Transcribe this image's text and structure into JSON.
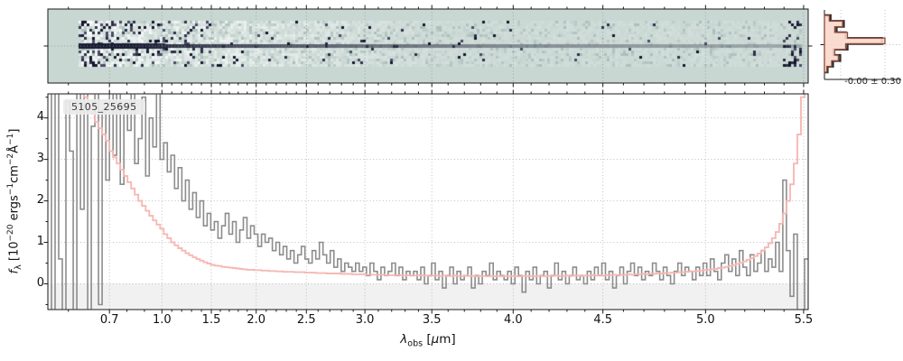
{
  "panel2d": {
    "bg_color": "#c9d7d3",
    "speckle_colors": [
      "#14152b",
      "#2c2f4a",
      "#474b66"
    ],
    "trace_color": "#1a1d33",
    "light_color": "#ffffff",
    "shadow_color": "#9cb3af"
  },
  "hist": {
    "annotation": "-0.00 ± 0.30",
    "outline_color": "#2e2e2e",
    "fill_color": "#f9d7cb",
    "edge_color": "#8c4a38"
  },
  "main": {
    "label": "5105_25695",
    "xlabel_parts": [
      "λ",
      "obs",
      " [",
      "μ",
      "m",
      "]"
    ],
    "ylabel_parts": [
      "f",
      "λ",
      " [10",
      "−20",
      " ergs",
      "−1",
      "cm",
      "−2",
      "Å",
      "−1",
      "]"
    ],
    "flux_color": "#8c8c8c",
    "err_color": "#f5b5b1",
    "grid_color": "#b8b8b8",
    "zero_shade_color": "#f1f1f1"
  },
  "chart_data": [
    {
      "type": "line",
      "title": "5105_25695",
      "xlabel": "lambda_obs [um]",
      "ylabel": "f_lambda [1e-20 ergs-1 cm-2 A-1]",
      "xlim": [
        0.55,
        5.52
      ],
      "ylim": [
        -0.62,
        4.58
      ],
      "x_ticks": [
        0.7,
        1.0,
        1.5,
        2.0,
        2.5,
        3.0,
        3.5,
        4.0,
        4.5,
        5.0,
        5.5
      ],
      "x_minor_step": 0.1,
      "y_ticks": [
        0,
        1,
        2,
        3,
        4
      ],
      "y_minor_step": 0.5,
      "grid": "dotted",
      "legend_position": "upper left",
      "wavelength_anchors": [
        [
          0.55,
          0.0
        ],
        [
          0.7,
          0.081
        ],
        [
          1.0,
          0.15
        ],
        [
          1.5,
          0.215
        ],
        [
          2.0,
          0.274
        ],
        [
          2.5,
          0.34
        ],
        [
          3.0,
          0.417
        ],
        [
          3.5,
          0.505
        ],
        [
          4.0,
          0.612
        ],
        [
          4.5,
          0.73
        ],
        [
          5.0,
          0.865
        ],
        [
          5.5,
          0.994
        ]
      ],
      "sampling": "210 steps uniform in detector-pixel fraction 0..1 spanning xlim",
      "series": [
        {
          "name": "flux",
          "color": "#8c8c8c",
          "line": "steps",
          "values": [
            4.8,
            -0.9,
            5.2,
            0.6,
            -1.1,
            4.4,
            3.2,
            -0.7,
            5.0,
            1.8,
            4.6,
            -1.0,
            3.8,
            5.1,
            -0.5,
            4.2,
            2.5,
            4.7,
            3.1,
            4.9,
            2.4,
            4.3,
            3.7,
            4.8,
            2.9,
            3.5,
            4.5,
            2.6,
            4.0,
            3.3,
            4.6,
            3.0,
            3.4,
            2.7,
            3.1,
            2.3,
            2.8,
            2.0,
            2.5,
            1.8,
            2.2,
            1.6,
            2.0,
            1.4,
            1.7,
            1.3,
            1.5,
            1.1,
            1.4,
            1.7,
            1.2,
            1.5,
            1.0,
            1.3,
            1.6,
            1.1,
            1.4,
            1.2,
            0.9,
            1.2,
            1.0,
            1.1,
            0.8,
            1.0,
            0.7,
            0.9,
            0.6,
            0.8,
            0.5,
            0.7,
            0.9,
            0.6,
            0.5,
            0.8,
            0.6,
            1.0,
            0.7,
            0.5,
            0.8,
            0.4,
            0.6,
            0.3,
            0.5,
            0.4,
            0.3,
            0.5,
            0.3,
            0.4,
            0.2,
            0.5,
            0.3,
            0.1,
            0.4,
            0.2,
            0.3,
            0.5,
            0.2,
            0.4,
            0.1,
            0.3,
            0.2,
            0.3,
            0.1,
            0.4,
            0.0,
            0.2,
            0.5,
            0.1,
            0.3,
            -0.1,
            0.2,
            0.4,
            0.0,
            0.3,
            0.1,
            0.2,
            0.4,
            -0.1,
            0.2,
            0.0,
            0.3,
            0.2,
            0.5,
            0.1,
            0.3,
            0.2,
            0.1,
            0.3,
            0.0,
            0.4,
            0.2,
            -0.2,
            0.3,
            0.1,
            0.4,
            0.0,
            0.2,
            0.3,
            -0.1,
            0.2,
            0.5,
            0.1,
            0.3,
            0.0,
            0.2,
            0.4,
            0.1,
            0.2,
            0.0,
            0.3,
            0.1,
            0.4,
            0.2,
            0.5,
            0.1,
            0.3,
            -0.1,
            0.2,
            0.4,
            0.0,
            0.3,
            0.5,
            0.2,
            0.4,
            0.1,
            0.3,
            0.2,
            0.5,
            0.3,
            0.1,
            0.4,
            0.2,
            0.0,
            0.3,
            0.5,
            0.2,
            0.4,
            0.3,
            0.1,
            0.4,
            0.2,
            0.5,
            0.2,
            0.6,
            0.3,
            0.1,
            0.5,
            0.7,
            0.3,
            0.6,
            0.2,
            0.8,
            0.4,
            0.2,
            0.7,
            0.3,
            0.5,
            0.8,
            0.3,
            0.6,
            0.4,
            1.0,
            0.3,
            2.5,
            0.8,
            -0.3,
            1.2,
            -0.9,
            -1.3,
            0.6
          ]
        },
        {
          "name": "uncertainty",
          "color": "#f5b5b1",
          "line": "steps",
          "values": [
            6.0,
            6.0,
            6.0,
            6.0,
            6.0,
            5.8,
            5.5,
            5.2,
            4.9,
            4.7,
            4.5,
            4.3,
            4.1,
            3.9,
            3.75,
            3.6,
            3.45,
            3.2,
            3.05,
            2.9,
            2.75,
            2.6,
            2.45,
            2.3,
            2.15,
            2.0,
            1.88,
            1.76,
            1.64,
            1.53,
            1.43,
            1.33,
            1.2,
            1.1,
            1.0,
            0.93,
            0.86,
            0.8,
            0.74,
            0.69,
            0.64,
            0.6,
            0.56,
            0.52,
            0.49,
            0.46,
            0.44,
            0.43,
            0.41,
            0.4,
            0.39,
            0.38,
            0.37,
            0.36,
            0.35,
            0.34,
            0.34,
            0.33,
            0.33,
            0.32,
            0.32,
            0.31,
            0.31,
            0.3,
            0.3,
            0.29,
            0.29,
            0.29,
            0.28,
            0.28,
            0.28,
            0.27,
            0.27,
            0.27,
            0.26,
            0.26,
            0.26,
            0.25,
            0.25,
            0.25,
            0.25,
            0.24,
            0.24,
            0.24,
            0.23,
            0.23,
            0.23,
            0.23,
            0.22,
            0.22,
            0.22,
            0.22,
            0.22,
            0.21,
            0.21,
            0.21,
            0.21,
            0.21,
            0.2,
            0.21,
            0.2,
            0.2,
            0.21,
            0.2,
            0.2,
            0.19,
            0.2,
            0.2,
            0.19,
            0.2,
            0.19,
            0.19,
            0.2,
            0.19,
            0.19,
            0.2,
            0.19,
            0.19,
            0.18,
            0.19,
            0.19,
            0.18,
            0.19,
            0.18,
            0.19,
            0.18,
            0.19,
            0.18,
            0.19,
            0.18,
            0.18,
            0.19,
            0.18,
            0.19,
            0.18,
            0.19,
            0.19,
            0.18,
            0.19,
            0.19,
            0.2,
            0.19,
            0.19,
            0.2,
            0.19,
            0.2,
            0.2,
            0.19,
            0.2,
            0.2,
            0.21,
            0.2,
            0.21,
            0.2,
            0.21,
            0.21,
            0.22,
            0.21,
            0.22,
            0.22,
            0.23,
            0.22,
            0.23,
            0.23,
            0.24,
            0.23,
            0.24,
            0.24,
            0.25,
            0.25,
            0.26,
            0.26,
            0.27,
            0.27,
            0.28,
            0.28,
            0.29,
            0.3,
            0.3,
            0.31,
            0.32,
            0.33,
            0.34,
            0.35,
            0.36,
            0.38,
            0.39,
            0.41,
            0.43,
            0.45,
            0.48,
            0.51,
            0.54,
            0.58,
            0.62,
            0.67,
            0.73,
            0.8,
            0.88,
            0.98,
            1.1,
            1.25,
            1.45,
            1.7,
            2.0,
            2.4,
            2.9,
            3.6,
            4.5,
            5.5
          ]
        }
      ]
    },
    {
      "type": "bar",
      "orientation": "horizontal",
      "panel": "pixel-value-histogram",
      "annotation": "-0.00 ± 0.30",
      "series": [
        {
          "name": "data",
          "color": "#2e2e2e",
          "values": [
            0.1,
            0.32,
            0.2,
            0.35,
            0.95,
            0.38,
            0.15,
            0.26,
            0.14,
            0.05
          ]
        },
        {
          "name": "model",
          "color": "#f9d7cb",
          "values": [
            0.08,
            0.3,
            0.17,
            0.38,
            1.0,
            0.35,
            0.17,
            0.23,
            0.12,
            0.04
          ]
        }
      ]
    },
    {
      "type": "heatmap",
      "panel": "2d-spectrum",
      "description": "Rectified 2D spectrum cutout on pale teal background; dense dark noise speckles at blue end fading redward, dark continuum trace along the center row, faint speckle column at the red edge.",
      "shares_x_with": "main 1D spectrum"
    }
  ]
}
